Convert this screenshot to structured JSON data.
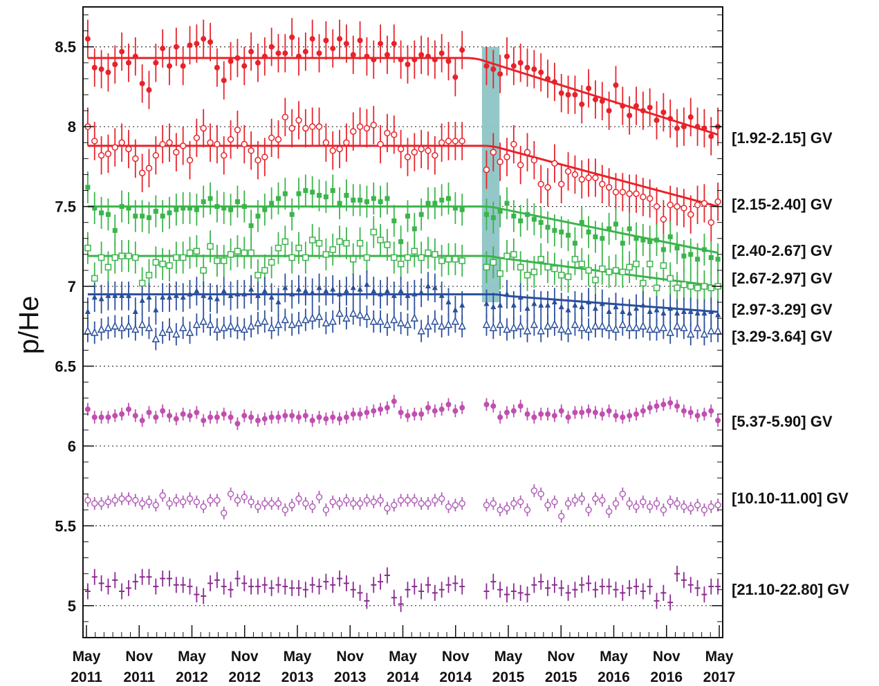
{
  "chart_data": {
    "type": "scatter",
    "ylabel": "p/He",
    "ylim": [
      4.8,
      8.75
    ],
    "yticks": [
      5,
      5.5,
      6,
      6.5,
      7,
      7.5,
      8,
      8.5
    ],
    "ytick_labels": [
      "5",
      "5.5",
      "6",
      "6.5",
      "7",
      "7.5",
      "8",
      "8.5"
    ],
    "x_range_months": [
      "2011-05",
      "2017-05"
    ],
    "xticks": [
      {
        "date": "2011-05",
        "month": "May",
        "year": "2011"
      },
      {
        "date": "2011-11",
        "month": "Nov",
        "year": "2011"
      },
      {
        "date": "2012-05",
        "month": "May",
        "year": "2012"
      },
      {
        "date": "2012-11",
        "month": "Nov",
        "year": "2012"
      },
      {
        "date": "2013-05",
        "month": "May",
        "year": "2013"
      },
      {
        "date": "2013-11",
        "month": "Nov",
        "year": "2013"
      },
      {
        "date": "2014-05",
        "month": "May",
        "year": "2014"
      },
      {
        "date": "2014-11",
        "month": "Nov",
        "year": "2014"
      },
      {
        "date": "2015-05",
        "month": "May",
        "year": "2015"
      },
      {
        "date": "2015-11",
        "month": "Nov",
        "year": "2015"
      },
      {
        "date": "2016-05",
        "month": "May",
        "year": "2016"
      },
      {
        "date": "2016-11",
        "month": "Nov",
        "year": "2016"
      },
      {
        "date": "2017-05",
        "month": "May",
        "year": "2017"
      }
    ],
    "gridlines": "horizontal dotted at major y ticks",
    "highlight_band": {
      "x_from": "2015-02",
      "x_to": "2015-04",
      "y_from": 6.9,
      "y_to": 8.5,
      "color": "#8ec5c5"
    },
    "data_gap": {
      "from": "2014-12",
      "to": "2015-01"
    },
    "series": [
      {
        "name": "[1.92-2.15] GV",
        "color": "#e8222a",
        "marker": "filled-circle",
        "errors": 0.12,
        "values": [
          8.55,
          8.37,
          8.36,
          8.34,
          8.39,
          8.47,
          8.4,
          8.44,
          8.27,
          8.23,
          8.4,
          8.49,
          8.38,
          8.5,
          8.38,
          8.51,
          8.52,
          8.55,
          8.53,
          8.37,
          8.29,
          8.41,
          8.43,
          8.38,
          8.47,
          8.4,
          8.44,
          8.5,
          8.46,
          8.46,
          8.56,
          8.44,
          8.47,
          8.55,
          8.46,
          8.54,
          8.49,
          8.55,
          8.52,
          8.45,
          8.54,
          8.44,
          8.42,
          8.52,
          8.45,
          8.52,
          8.42,
          8.39,
          8.42,
          8.45,
          8.44,
          8.42,
          8.46,
          8.41,
          8.31,
          8.48,
          8.38,
          8.36,
          8.33,
          8.44,
          8.38,
          8.4,
          8.37,
          8.36,
          8.34,
          8.3,
          8.28,
          8.21,
          8.2,
          8.2,
          8.14,
          8.24,
          8.17,
          8.16,
          8.1,
          8.26,
          8.13,
          8.07,
          8.13,
          8.1,
          8.12,
          8.04,
          8.09,
          8.05,
          7.99,
          8.0,
          8.06,
          8.0,
          7.99,
          7.94,
          8.0
        ],
        "fit": {
          "plateau": 8.43,
          "break": "2015-01",
          "end": 7.95
        }
      },
      {
        "name": "[2.15-2.40] GV",
        "color": "#e8222a",
        "marker": "open-circle",
        "errors": 0.12,
        "values": [
          8.0,
          7.91,
          7.82,
          7.83,
          7.87,
          7.9,
          7.86,
          7.8,
          7.71,
          7.74,
          7.82,
          7.89,
          7.9,
          7.84,
          7.88,
          7.79,
          7.93,
          7.99,
          7.9,
          7.89,
          7.82,
          7.92,
          7.98,
          7.89,
          7.85,
          7.79,
          7.81,
          7.93,
          7.92,
          8.06,
          7.99,
          8.04,
          7.99,
          8.0,
          8.0,
          7.9,
          7.85,
          7.86,
          7.9,
          7.97,
          8.0,
          7.99,
          8.01,
          7.89,
          7.96,
          7.95,
          7.86,
          7.81,
          7.84,
          7.86,
          7.85,
          7.82,
          7.9,
          7.91,
          7.91,
          7.91,
          7.73,
          7.84,
          7.78,
          7.81,
          7.89,
          7.76,
          7.84,
          7.79,
          7.64,
          7.62,
          7.77,
          7.64,
          7.72,
          7.7,
          7.67,
          7.68,
          7.68,
          7.64,
          7.62,
          7.59,
          7.59,
          7.58,
          7.58,
          7.56,
          7.55,
          7.5,
          7.42,
          7.51,
          7.5,
          7.49,
          7.45,
          7.51,
          7.52,
          7.4,
          7.53
        ],
        "fit": {
          "plateau": 7.88,
          "break": "2015-03",
          "end": 7.5
        }
      },
      {
        "name": "[2.40-2.67] GV",
        "color": "#3ab54a",
        "marker": "filled-square",
        "errors": 0.1,
        "values": [
          7.62,
          7.49,
          7.46,
          7.45,
          7.35,
          7.5,
          7.49,
          7.44,
          7.44,
          7.43,
          7.47,
          7.44,
          7.46,
          7.48,
          7.49,
          7.49,
          7.48,
          7.53,
          7.55,
          7.5,
          7.49,
          7.48,
          7.53,
          7.5,
          7.38,
          7.44,
          7.48,
          7.52,
          7.55,
          7.58,
          7.45,
          7.58,
          7.6,
          7.59,
          7.57,
          7.56,
          7.6,
          7.52,
          7.57,
          7.54,
          7.54,
          7.53,
          7.55,
          7.53,
          7.55,
          7.41,
          7.28,
          7.44,
          7.36,
          7.45,
          7.52,
          7.52,
          7.54,
          7.55,
          7.49,
          7.48,
          7.45,
          7.43,
          7.47,
          7.52,
          7.44,
          7.41,
          7.45,
          7.42,
          7.4,
          7.37,
          7.35,
          7.34,
          7.32,
          7.27,
          7.4,
          7.34,
          7.31,
          7.3,
          7.36,
          7.39,
          7.27,
          7.36,
          7.3,
          7.29,
          7.28,
          7.29,
          7.23,
          7.31,
          7.24,
          7.19,
          7.2,
          7.17,
          7.23,
          7.18,
          7.17
        ],
        "fit": {
          "plateau": 7.5,
          "break": "2015-03",
          "end": 7.21
        }
      },
      {
        "name": "[2.67-2.97] GV",
        "color": "#3ab54a",
        "marker": "open-square",
        "errors": 0.1,
        "values": [
          7.24,
          7.05,
          7.18,
          7.12,
          7.18,
          7.19,
          7.19,
          7.18,
          7.02,
          7.07,
          7.15,
          7.14,
          7.13,
          7.18,
          7.18,
          7.21,
          7.22,
          7.1,
          7.25,
          7.16,
          7.16,
          7.2,
          7.22,
          7.21,
          7.21,
          7.07,
          7.1,
          7.15,
          7.24,
          7.28,
          7.18,
          7.24,
          7.18,
          7.29,
          7.27,
          7.2,
          7.23,
          7.28,
          7.27,
          7.17,
          7.27,
          7.18,
          7.34,
          7.29,
          7.26,
          7.18,
          7.14,
          7.18,
          7.22,
          7.18,
          7.21,
          7.2,
          7.16,
          7.17,
          7.17,
          7.16,
          7.12,
          7.15,
          7.08,
          7.19,
          7.2,
          7.12,
          7.07,
          7.09,
          7.17,
          7.12,
          7.11,
          7.07,
          7.06,
          7.17,
          7.14,
          7.1,
          7.04,
          7.11,
          7.09,
          7.1,
          7.09,
          7.12,
          7.14,
          7.02,
          7.14,
          6.99,
          7.13,
          7.05,
          6.99,
          7.01,
          7.0,
          6.99,
          7.0,
          6.99,
          7.0
        ],
        "fit": {
          "plateau": 7.19,
          "break": "2015-03",
          "end": 7.0
        }
      },
      {
        "name": "[2.97-3.29] GV",
        "color": "#2a4f9c",
        "marker": "filled-triangle",
        "errors": 0.09,
        "values": [
          6.84,
          6.93,
          6.92,
          6.94,
          6.94,
          6.94,
          6.94,
          6.84,
          6.91,
          6.93,
          6.85,
          6.93,
          6.93,
          6.94,
          6.93,
          6.95,
          6.97,
          6.94,
          6.93,
          6.92,
          6.97,
          6.94,
          6.95,
          6.95,
          6.98,
          6.94,
          6.97,
          6.93,
          6.9,
          6.99,
          6.95,
          6.98,
          6.97,
          6.96,
          6.99,
          6.97,
          6.98,
          6.95,
          6.97,
          6.99,
          6.98,
          7.01,
          6.97,
          6.95,
          6.97,
          6.94,
          6.97,
          6.94,
          6.95,
          6.96,
          7.0,
          6.99,
          6.94,
          6.9,
          6.85,
          6.88,
          6.89,
          6.87,
          6.88,
          6.95,
          6.88,
          6.93,
          6.86,
          6.89,
          6.88,
          6.88,
          6.9,
          6.87,
          6.85,
          6.88,
          6.87,
          6.9,
          6.86,
          6.89,
          6.84,
          6.87,
          6.84,
          6.83,
          6.86,
          6.88,
          6.84,
          6.85,
          6.83,
          6.86,
          6.83,
          6.84,
          6.84,
          6.83,
          6.83,
          6.84,
          6.82
        ],
        "fit": {
          "plateau": 6.95,
          "break": "2015-04",
          "end": 6.84
        }
      },
      {
        "name": "[3.29-3.64] GV",
        "color": "#2a4f9c",
        "marker": "open-triangle",
        "errors": 0.07,
        "values": [
          6.72,
          6.71,
          6.73,
          6.74,
          6.75,
          6.74,
          6.75,
          6.73,
          6.76,
          6.74,
          6.67,
          6.71,
          6.73,
          6.7,
          6.74,
          6.71,
          6.76,
          6.78,
          6.76,
          6.73,
          6.74,
          6.75,
          6.74,
          6.73,
          6.75,
          6.77,
          6.78,
          6.74,
          6.76,
          6.79,
          6.76,
          6.77,
          6.79,
          6.8,
          6.81,
          6.77,
          6.78,
          6.83,
          6.8,
          6.83,
          6.82,
          6.81,
          6.78,
          6.78,
          6.76,
          6.79,
          6.77,
          6.76,
          6.8,
          6.72,
          6.75,
          6.78,
          6.75,
          6.76,
          6.78,
          6.75,
          6.76,
          6.74,
          6.76,
          6.73,
          6.74,
          6.75,
          6.72,
          6.76,
          6.72,
          6.75,
          6.76,
          6.73,
          6.72,
          6.76,
          6.74,
          6.73,
          6.75,
          6.75,
          6.74,
          6.73,
          6.76,
          6.74,
          6.74,
          6.75,
          6.73,
          6.73,
          6.74,
          6.71,
          6.75,
          6.74,
          6.7,
          6.74,
          6.7,
          6.72,
          6.72
        ]
      },
      {
        "name": "[5.37-5.90] GV",
        "color": "#c04fb0",
        "marker": "filled-circle",
        "errors": 0.04,
        "values": [
          6.23,
          6.18,
          6.18,
          6.18,
          6.19,
          6.2,
          6.23,
          6.19,
          6.16,
          6.21,
          6.18,
          6.22,
          6.19,
          6.17,
          6.2,
          6.19,
          6.21,
          6.16,
          6.18,
          6.18,
          6.2,
          6.18,
          6.14,
          6.19,
          6.18,
          6.16,
          6.17,
          6.18,
          6.18,
          6.19,
          6.19,
          6.18,
          6.19,
          6.16,
          6.18,
          6.17,
          6.18,
          6.17,
          6.18,
          6.2,
          6.2,
          6.21,
          6.22,
          6.23,
          6.24,
          6.28,
          6.21,
          6.19,
          6.2,
          6.2,
          6.24,
          6.22,
          6.23,
          6.26,
          6.22,
          6.24,
          6.26,
          6.25,
          6.18,
          6.21,
          6.22,
          6.25,
          6.2,
          6.18,
          6.2,
          6.2,
          6.19,
          6.22,
          6.18,
          6.21,
          6.21,
          6.22,
          6.21,
          6.2,
          6.22,
          6.19,
          6.18,
          6.19,
          6.2,
          6.22,
          6.24,
          6.25,
          6.26,
          6.27,
          6.25,
          6.22,
          6.21,
          6.19,
          6.2,
          6.22,
          6.16
        ]
      },
      {
        "name": "[10.10-11.00] GV",
        "color": "#b060b8",
        "marker": "open-circle",
        "errors": 0.04,
        "values": [
          5.66,
          5.64,
          5.64,
          5.65,
          5.66,
          5.67,
          5.67,
          5.66,
          5.64,
          5.65,
          5.63,
          5.69,
          5.64,
          5.66,
          5.65,
          5.67,
          5.65,
          5.62,
          5.66,
          5.66,
          5.58,
          5.7,
          5.66,
          5.68,
          5.65,
          5.62,
          5.64,
          5.64,
          5.64,
          5.6,
          5.63,
          5.67,
          5.64,
          5.62,
          5.68,
          5.6,
          5.65,
          5.64,
          5.66,
          5.64,
          5.64,
          5.66,
          5.65,
          5.66,
          5.61,
          5.63,
          5.66,
          5.66,
          5.66,
          5.64,
          5.64,
          5.66,
          5.67,
          5.62,
          5.63,
          5.64,
          5.63,
          5.64,
          5.6,
          5.61,
          5.64,
          5.65,
          5.6,
          5.72,
          5.7,
          5.63,
          5.65,
          5.56,
          5.64,
          5.66,
          5.67,
          5.6,
          5.67,
          5.66,
          5.59,
          5.64,
          5.7,
          5.64,
          5.62,
          5.65,
          5.62,
          5.64,
          5.6,
          5.65,
          5.64,
          5.62,
          5.61,
          5.63,
          5.6,
          5.62,
          5.63
        ]
      },
      {
        "name": "[21.10-22.80] GV",
        "color": "#8a2a90",
        "marker": "cross",
        "errors": 0.05,
        "values": [
          5.09,
          5.18,
          5.14,
          5.12,
          5.16,
          5.09,
          5.11,
          5.15,
          5.18,
          5.18,
          5.12,
          5.17,
          5.17,
          5.13,
          5.13,
          5.12,
          5.07,
          5.06,
          5.14,
          5.16,
          5.12,
          5.1,
          5.17,
          5.14,
          5.12,
          5.12,
          5.13,
          5.11,
          5.13,
          5.12,
          5.11,
          5.11,
          5.1,
          5.13,
          5.12,
          5.15,
          5.13,
          5.17,
          5.14,
          5.1,
          5.08,
          5.03,
          5.13,
          5.15,
          5.19,
          5.05,
          5.01,
          5.1,
          5.12,
          5.09,
          5.13,
          5.08,
          5.1,
          5.13,
          5.14,
          5.12,
          5.09,
          5.15,
          5.1,
          5.07,
          5.09,
          5.08,
          5.07,
          5.13,
          5.15,
          5.11,
          5.13,
          5.11,
          5.08,
          5.1,
          5.13,
          5.14,
          5.1,
          5.12,
          5.12,
          5.1,
          5.08,
          5.11,
          5.12,
          5.09,
          5.12,
          5.03,
          5.08,
          5.02,
          5.2,
          5.16,
          5.13,
          5.11,
          5.07,
          5.12,
          5.12
        ]
      }
    ]
  }
}
